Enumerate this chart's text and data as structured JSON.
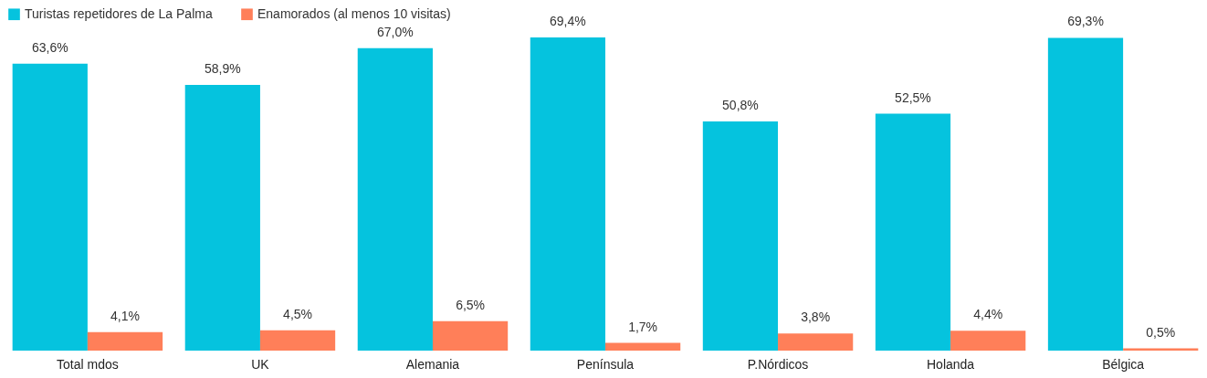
{
  "chart_data": {
    "type": "bar",
    "categories": [
      "Total mdos",
      "UK",
      "Alemania",
      "Península",
      "P.Nórdicos",
      "Holanda",
      "Bélgica"
    ],
    "series": [
      {
        "name": "Turistas repetidores de La Palma",
        "color": "#05c3de",
        "values": [
          63.6,
          58.9,
          67.0,
          69.4,
          50.8,
          52.5,
          69.3
        ],
        "value_labels": [
          "63,6%",
          "58,9%",
          "67,0%",
          "69,4%",
          "50,8%",
          "52,5%",
          "69,3%"
        ]
      },
      {
        "name": "Enamorados (al menos 10 visitas)",
        "color": "#ff7f59",
        "values": [
          4.1,
          4.5,
          6.5,
          1.7,
          3.8,
          4.4,
          0.5
        ],
        "value_labels": [
          "4,1%",
          "4,5%",
          "6,5%",
          "1,7%",
          "3,8%",
          "4,4%",
          "0,5%"
        ]
      }
    ],
    "legend": "top",
    "grid": false
  }
}
